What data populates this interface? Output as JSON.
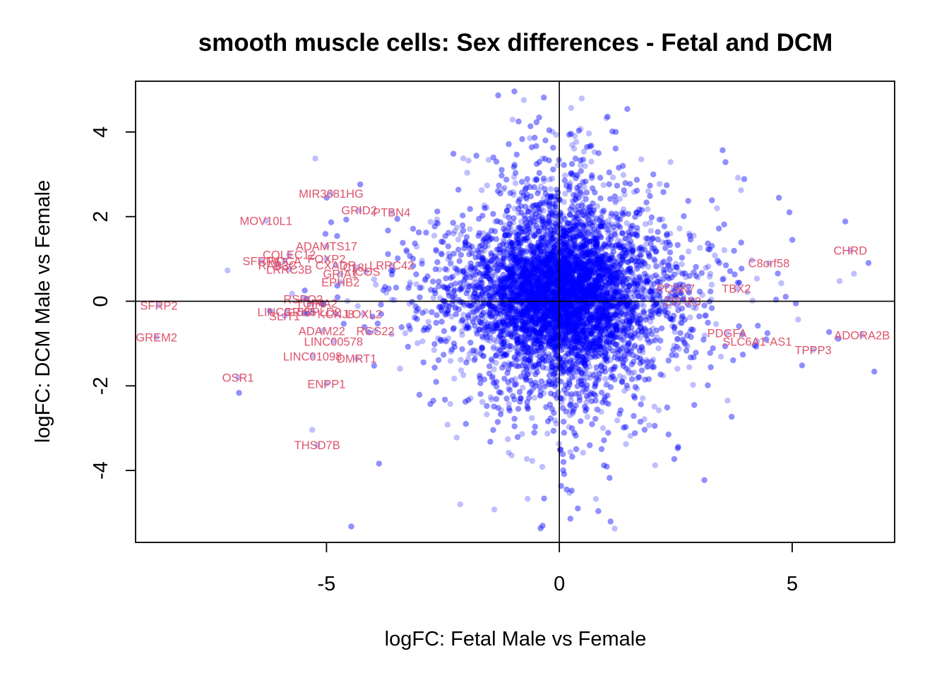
{
  "chart_data": {
    "type": "scatter",
    "title": "smooth muscle cells: Sex differences - Fetal and DCM",
    "xlabel": "logFC: Fetal Male vs Female",
    "ylabel": "logFC: DCM Male vs Female",
    "xlim": [
      -9.1,
      7.2
    ],
    "ylim": [
      -5.7,
      5.2
    ],
    "x_ticks": [
      -5,
      0,
      5
    ],
    "y_ticks": [
      -4,
      -2,
      0,
      2,
      4
    ],
    "reference_lines": {
      "x": 0,
      "y": 0
    },
    "point_color": "#0000ff",
    "point_alpha": 0.25,
    "label_color": "#df536b",
    "approx_point_count": 9000,
    "labeled_genes": [
      {
        "gene": "MIR3681HG",
        "x": -4.9,
        "y": 2.55
      },
      {
        "gene": "GRID2",
        "x": -4.3,
        "y": 2.15
      },
      {
        "gene": "PTBN4",
        "x": -3.6,
        "y": 2.1
      },
      {
        "gene": "MOV10L1",
        "x": -6.3,
        "y": 1.9
      },
      {
        "gene": "ADAMTS17",
        "x": -5.0,
        "y": 1.3
      },
      {
        "gene": "COLEC12",
        "x": -5.8,
        "y": 1.1
      },
      {
        "gene": "SFRP4",
        "x": -6.4,
        "y": 0.95
      },
      {
        "gene": "RAB3C",
        "x": -6.05,
        "y": 0.85
      },
      {
        "gene": "ROCA",
        "x": -5.9,
        "y": 0.95
      },
      {
        "gene": "FOXP2",
        "x": -5.0,
        "y": 1.0
      },
      {
        "gene": "CXADR",
        "x": -4.8,
        "y": 0.85
      },
      {
        "gene": "C18L",
        "x": -4.35,
        "y": 0.8
      },
      {
        "gene": "LRRC42",
        "x": -3.6,
        "y": 0.85
      },
      {
        "gene": "LRRC3B",
        "x": -5.8,
        "y": 0.75
      },
      {
        "gene": "GRIA1",
        "x": -4.7,
        "y": 0.65
      },
      {
        "gene": "ICOS",
        "x": -4.15,
        "y": 0.7
      },
      {
        "gene": "EPHB2",
        "x": -4.7,
        "y": 0.45
      },
      {
        "gene": "RSPO2",
        "x": -5.5,
        "y": 0.05
      },
      {
        "gene": "TCF4",
        "x": -5.35,
        "y": -0.05
      },
      {
        "gene": "HRA2",
        "x": -5.1,
        "y": -0.05
      },
      {
        "gene": "LINC01505",
        "x": -5.85,
        "y": -0.25
      },
      {
        "gene": "SLIT1",
        "x": -5.9,
        "y": -0.35
      },
      {
        "gene": "CRISPLD2",
        "x": -5.3,
        "y": -0.25
      },
      {
        "gene": "KCNJ8",
        "x": -4.8,
        "y": -0.3
      },
      {
        "gene": "LOXL2",
        "x": -4.2,
        "y": -0.3
      },
      {
        "gene": "ADAM22",
        "x": -5.1,
        "y": -0.7
      },
      {
        "gene": "RGS22",
        "x": -3.95,
        "y": -0.7
      },
      {
        "gene": "LINC00578",
        "x": -4.85,
        "y": -0.95
      },
      {
        "gene": "LINC01098",
        "x": -5.3,
        "y": -1.3
      },
      {
        "gene": "DMRT1",
        "x": -4.35,
        "y": -1.35
      },
      {
        "gene": "SFRP2",
        "x": -8.6,
        "y": -0.1
      },
      {
        "gene": "GREM2",
        "x": -8.65,
        "y": -0.85
      },
      {
        "gene": "OSR1",
        "x": -6.9,
        "y": -1.8
      },
      {
        "gene": "ENPP1",
        "x": -5.0,
        "y": -1.95
      },
      {
        "gene": "THSD7B",
        "x": -5.2,
        "y": -3.4
      },
      {
        "gene": "CHRD",
        "x": 6.25,
        "y": 1.2
      },
      {
        "gene": "C8orf58",
        "x": 4.5,
        "y": 0.9
      },
      {
        "gene": "PCSK7",
        "x": 2.5,
        "y": 0.3
      },
      {
        "gene": "TBX2",
        "x": 3.8,
        "y": 0.3
      },
      {
        "gene": "ZFHX3",
        "x": 2.65,
        "y": 0.0
      },
      {
        "gene": "PDGFA",
        "x": 3.6,
        "y": -0.75
      },
      {
        "gene": "SLC6A1-AS1",
        "x": 4.25,
        "y": -0.95
      },
      {
        "gene": "ADORA2B",
        "x": 6.5,
        "y": -0.8
      },
      {
        "gene": "TPPP3",
        "x": 5.45,
        "y": -1.15
      }
    ]
  }
}
